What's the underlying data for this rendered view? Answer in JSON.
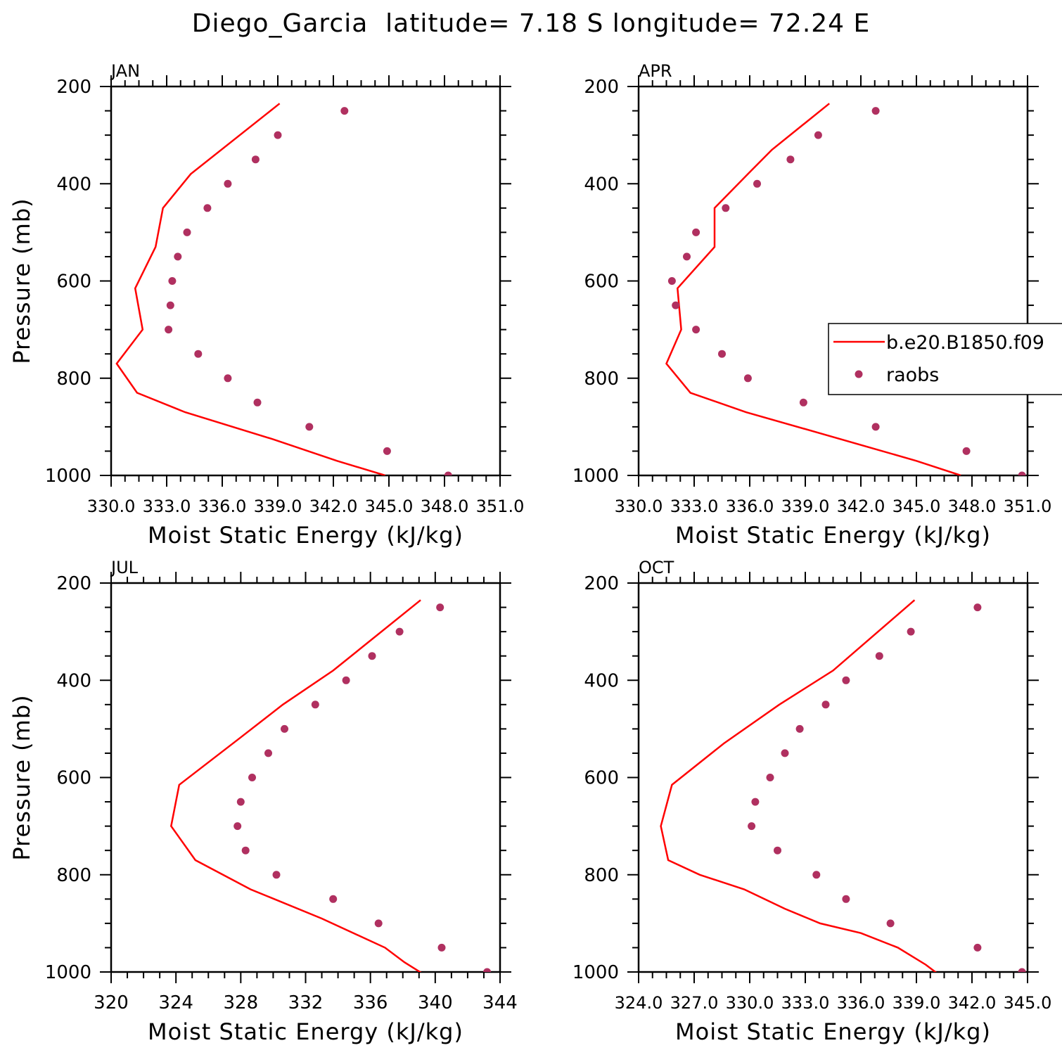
{
  "figure_title": "Diego_Garcia  latitude= 7.18 S longitude= 72.24 E",
  "colors": {
    "model": "#ff0000",
    "obs": "#b03060",
    "axis": "#000000"
  },
  "legend": {
    "model_label": "b.e20.B1850.f09",
    "obs_label": "raobs"
  },
  "chart_data": [
    {
      "type": "line",
      "panel": "JAN",
      "xlabel": "Moist Static Energy (kJ/kg)",
      "ylabel": "Pressure (mb)",
      "xlim": [
        330,
        351
      ],
      "ylim": [
        1000,
        200
      ],
      "xticks": [
        330,
        333,
        336,
        339,
        342,
        345,
        348,
        351
      ],
      "xtick_labels": [
        "330.0",
        "333.0",
        "336.0",
        "339.0",
        "342.0",
        "345.0",
        "348.0",
        "351.0"
      ],
      "yticks": [
        200,
        400,
        600,
        800,
        1000
      ],
      "ytick_labels": [
        "200",
        "400",
        "600",
        "800",
        "1000"
      ],
      "series": [
        {
          "name": "b.e20.B1850.f09",
          "kind": "line",
          "x": [
            339.1,
            334.3,
            332.8,
            332.4,
            331.3,
            331.7,
            330.3,
            331.4,
            334.0,
            338.7,
            342.2,
            344.8
          ],
          "y": [
            235,
            380,
            450,
            530,
            615,
            700,
            770,
            830,
            870,
            925,
            970,
            1000
          ]
        },
        {
          "name": "raobs",
          "kind": "scatter",
          "x": [
            342.6,
            339.0,
            337.8,
            336.3,
            335.2,
            334.1,
            333.6,
            333.3,
            333.2,
            333.1,
            334.7,
            336.3,
            337.9,
            340.7,
            344.9,
            348.2
          ],
          "y": [
            250,
            300,
            350,
            400,
            450,
            500,
            550,
            600,
            650,
            700,
            750,
            800,
            850,
            900,
            950,
            1000
          ]
        }
      ]
    },
    {
      "type": "line",
      "panel": "APR",
      "xlabel": "Moist Static Energy (kJ/kg)",
      "ylabel": "",
      "xlim": [
        330,
        351
      ],
      "ylim": [
        1000,
        200
      ],
      "xticks": [
        330,
        333,
        336,
        339,
        342,
        345,
        348,
        351
      ],
      "xtick_labels": [
        "330.0",
        "333.0",
        "336.0",
        "339.0",
        "342.0",
        "345.0",
        "348.0",
        "351.0"
      ],
      "yticks": [
        200,
        400,
        600,
        800,
        1000
      ],
      "ytick_labels": [
        "200",
        "400",
        "600",
        "800",
        "1000"
      ],
      "series": [
        {
          "name": "b.e20.B1850.f09",
          "kind": "line",
          "x": [
            340.3,
            337.2,
            335.9,
            334.1,
            334.1,
            332.1,
            332.3,
            331.5,
            332.8,
            335.8,
            339.5,
            345.0,
            347.4
          ],
          "y": [
            235,
            330,
            380,
            450,
            530,
            615,
            700,
            770,
            830,
            870,
            910,
            970,
            1000
          ]
        },
        {
          "name": "raobs",
          "kind": "scatter",
          "x": [
            342.8,
            339.7,
            338.2,
            336.4,
            334.7,
            333.1,
            332.6,
            331.8,
            332.0,
            333.1,
            334.5,
            335.9,
            338.9,
            342.8,
            347.7,
            350.7
          ],
          "y": [
            250,
            300,
            350,
            400,
            450,
            500,
            550,
            600,
            650,
            700,
            750,
            800,
            850,
            900,
            950,
            1000
          ]
        }
      ]
    },
    {
      "type": "line",
      "panel": "JUL",
      "xlabel": "Moist Static Energy (kJ/kg)",
      "ylabel": "Pressure (mb)",
      "xlim": [
        320,
        344
      ],
      "ylim": [
        1000,
        200
      ],
      "xticks": [
        320,
        324,
        328,
        332,
        336,
        340,
        344
      ],
      "xtick_labels": [
        "320",
        "324",
        "328",
        "332",
        "336",
        "340",
        "344"
      ],
      "series": [
        {
          "name": "b.e20.B1850.f09",
          "kind": "line",
          "x": [
            339.1,
            333.7,
            330.6,
            327.9,
            324.2,
            323.7,
            325.2,
            328.6,
            333.0,
            336.9,
            338.1,
            339.3
          ],
          "y": [
            235,
            380,
            450,
            520,
            615,
            700,
            770,
            830,
            890,
            950,
            980,
            1005
          ]
        },
        {
          "name": "raobs",
          "kind": "scatter",
          "x": [
            340.3,
            337.8,
            336.1,
            334.5,
            332.6,
            330.7,
            329.7,
            328.7,
            328.0,
            327.8,
            328.3,
            330.2,
            333.7,
            336.5,
            340.4,
            343.2
          ],
          "y": [
            250,
            300,
            350,
            400,
            450,
            500,
            550,
            600,
            650,
            700,
            750,
            800,
            850,
            900,
            950,
            1000
          ]
        }
      ],
      "yticks": [
        200,
        400,
        600,
        800,
        1000
      ],
      "ytick_labels": [
        "200",
        "400",
        "600",
        "800",
        "1000"
      ]
    },
    {
      "type": "line",
      "panel": "OCT",
      "xlabel": "Moist Static Energy (kJ/kg)",
      "ylabel": "",
      "xlim": [
        324,
        345
      ],
      "ylim": [
        1000,
        200
      ],
      "xticks": [
        324,
        327,
        330,
        333,
        336,
        339,
        342,
        345
      ],
      "xtick_labels": [
        "324.0",
        "327.0",
        "330.0",
        "333.0",
        "336.0",
        "339.0",
        "342.0",
        "345.0"
      ],
      "series": [
        {
          "name": "b.e20.B1850.f09",
          "kind": "line",
          "x": [
            338.9,
            334.5,
            331.6,
            328.6,
            325.8,
            325.2,
            325.6,
            327.3,
            329.7,
            331.9,
            333.8,
            336.0,
            338.0,
            339.5,
            340.2
          ],
          "y": [
            235,
            380,
            450,
            530,
            615,
            700,
            770,
            800,
            830,
            870,
            900,
            920,
            950,
            985,
            1005
          ]
        },
        {
          "name": "raobs",
          "kind": "scatter",
          "x": [
            342.3,
            338.7,
            337.0,
            335.2,
            334.1,
            332.7,
            331.9,
            331.1,
            330.3,
            330.1,
            331.5,
            333.6,
            335.2,
            337.6,
            342.3,
            344.7
          ],
          "y": [
            250,
            300,
            350,
            400,
            450,
            500,
            550,
            600,
            650,
            700,
            750,
            800,
            850,
            900,
            950,
            1000
          ]
        }
      ],
      "yticks": [
        200,
        400,
        600,
        800,
        1000
      ],
      "ytick_labels": [
        "200",
        "400",
        "600",
        "800",
        "1000"
      ]
    }
  ]
}
